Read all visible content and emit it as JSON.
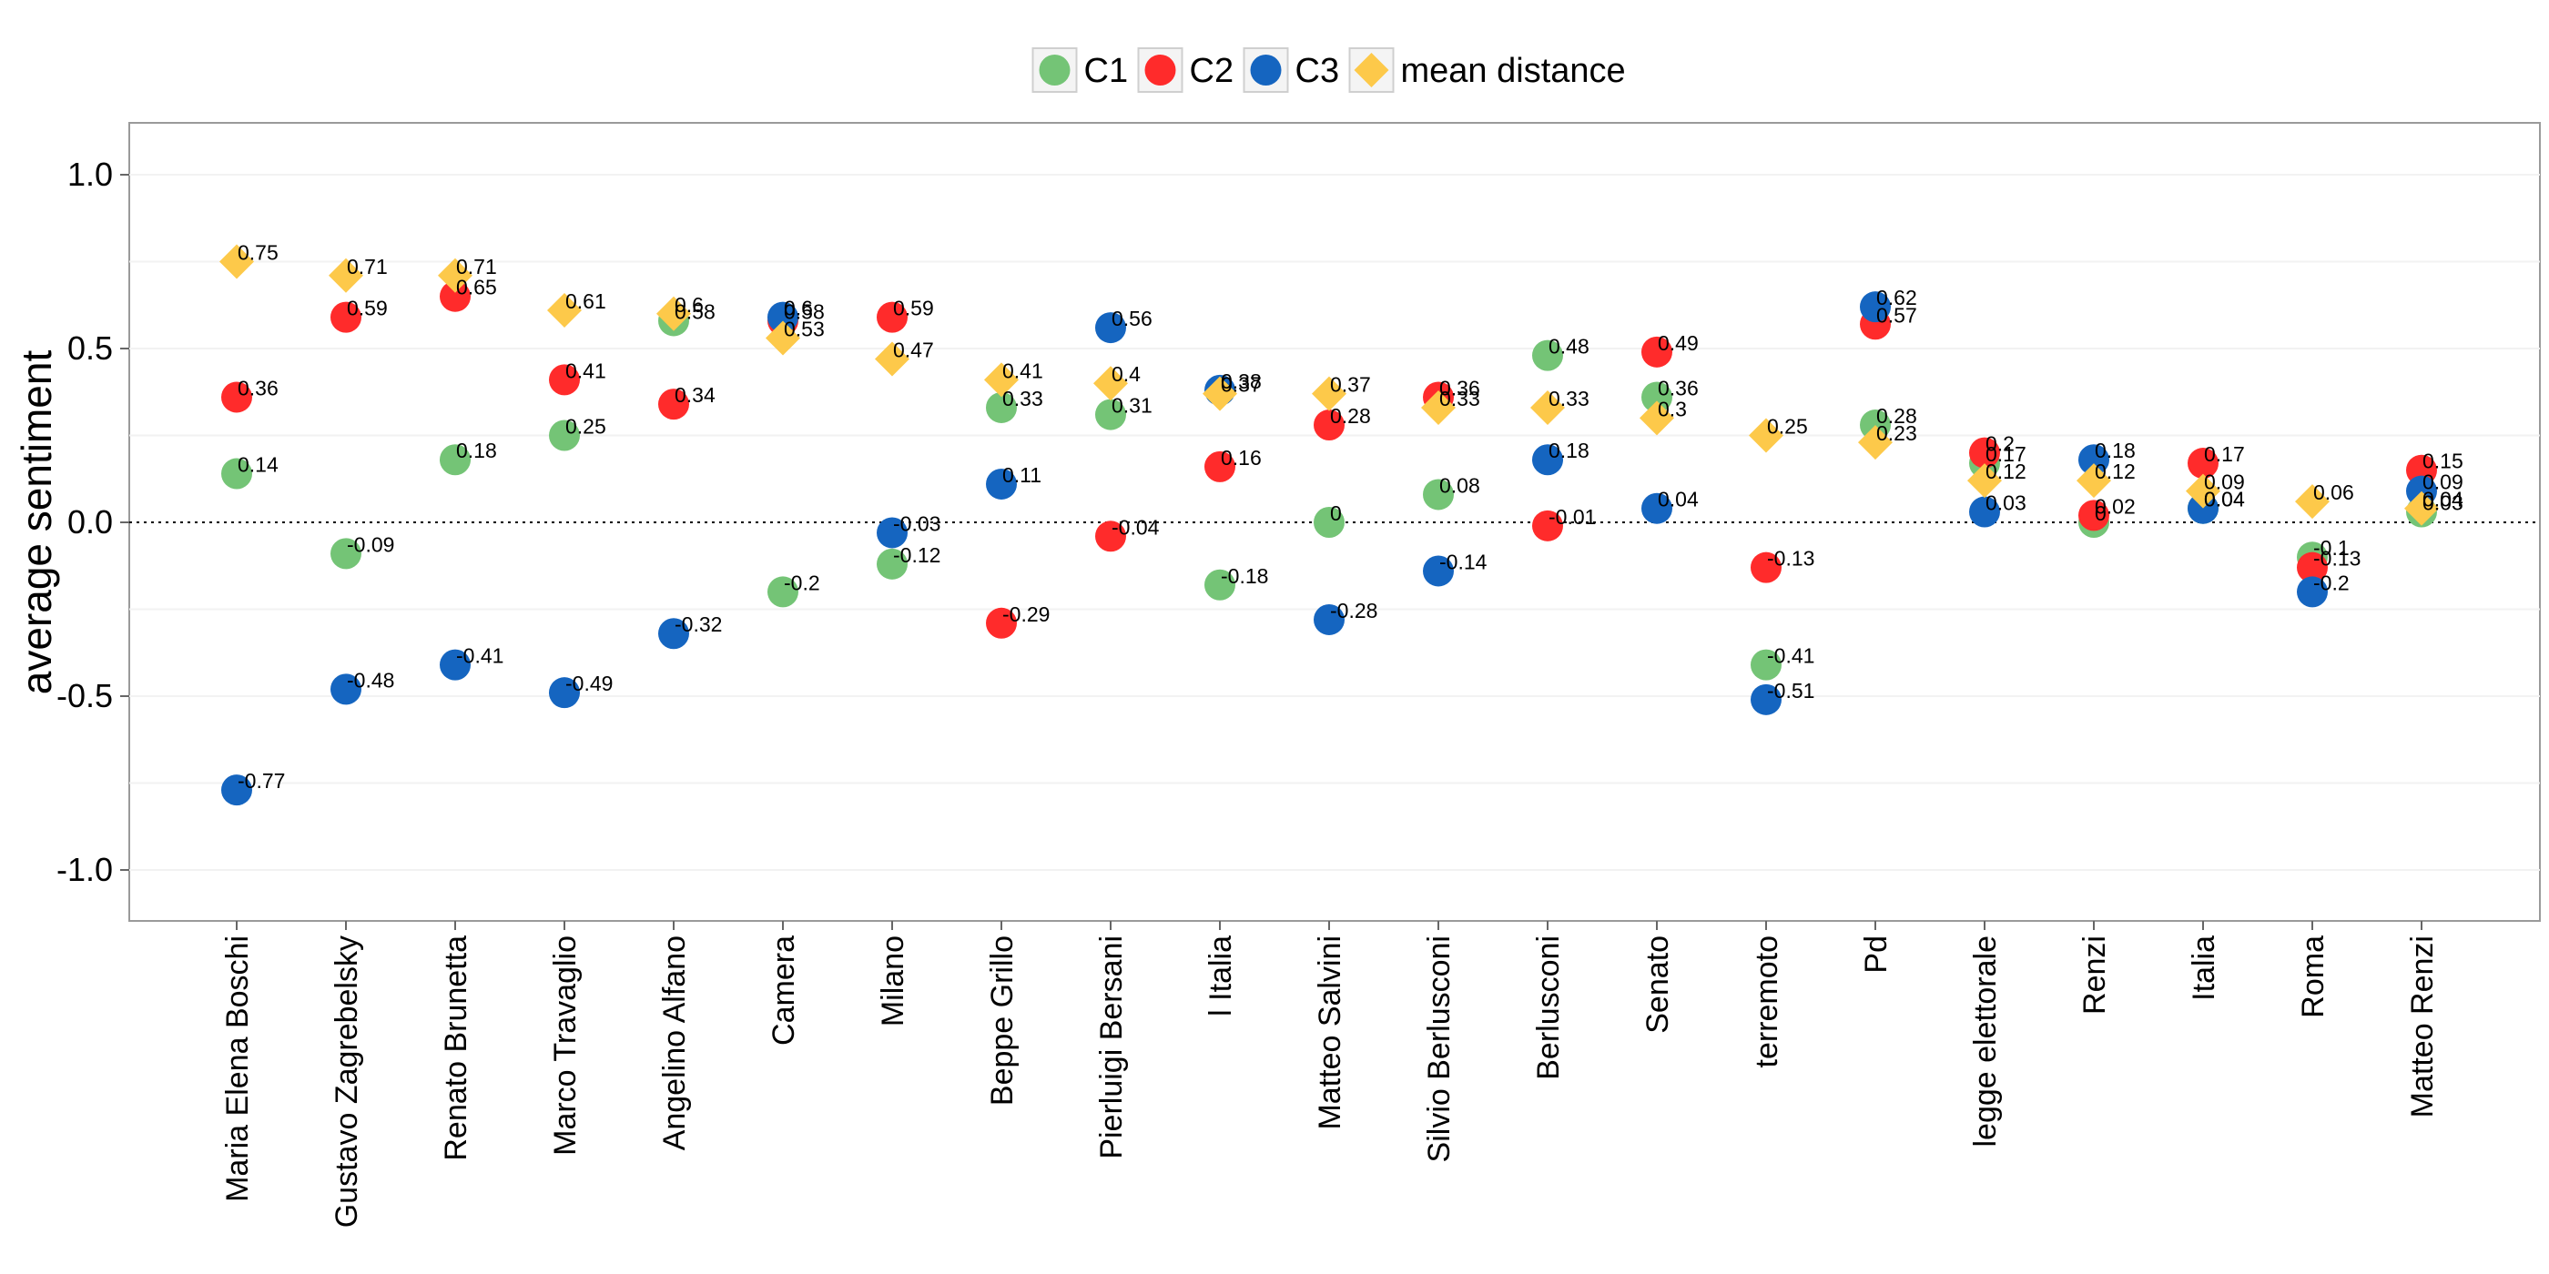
{
  "chart_data": {
    "type": "scatter",
    "title": "",
    "xlabel": "",
    "ylabel": "average sentiment",
    "ylim": [
      -1.15,
      1.15
    ],
    "yticks": [
      1.0,
      0.5,
      0.0,
      -0.5,
      -1.0
    ],
    "ytick_labels": [
      "1.0",
      "0.5",
      "0.0",
      "-0.5",
      "-1.0"
    ],
    "reference_line": 0,
    "legend_position": "top",
    "categories": [
      "Maria Elena Boschi",
      "Gustavo Zagrebelsky",
      "Renato Brunetta",
      "Marco Travaglio",
      "Angelino Alfano",
      "Camera",
      "Milano",
      "Beppe Grillo",
      "Pierluigi Bersani",
      "l Italia",
      "Matteo Salvini",
      "Silvio Berlusconi",
      "Berlusconi",
      "Senato",
      "terremoto",
      "Pd",
      "legge elettorale",
      "Renzi",
      "Italia",
      "Roma",
      "Matteo Renzi"
    ],
    "series": [
      {
        "name": "C1",
        "marker": "circle",
        "color": "#74c476",
        "values": [
          0.14,
          -0.09,
          0.18,
          0.25,
          0.58,
          -0.2,
          -0.12,
          0.33,
          0.31,
          -0.18,
          0,
          0.08,
          0.48,
          0.36,
          -0.41,
          0.28,
          0.17,
          0,
          0.04,
          -0.1,
          0.03
        ],
        "labels": [
          "0.14",
          "-0.09",
          "0.18",
          "0.25",
          "0.58",
          "-0.2",
          "-0.12",
          "0.33",
          "0.31",
          "-0.18",
          "0",
          "0.08",
          "0.48",
          "0.36",
          "-0.41",
          "0.28",
          "0.17",
          "0",
          "0.04",
          "-0.1",
          "0.03"
        ]
      },
      {
        "name": "C2",
        "marker": "circle",
        "color": "#ff2b2b",
        "values": [
          0.36,
          0.59,
          0.65,
          0.41,
          0.34,
          0.58,
          0.59,
          -0.29,
          -0.04,
          0.16,
          0.28,
          0.36,
          -0.01,
          0.49,
          -0.13,
          0.57,
          0.2,
          0.02,
          0.17,
          -0.13,
          0.15
        ],
        "labels": [
          "0.36",
          "0.59",
          "0.65",
          "0.41",
          "0.34",
          "0.58",
          "0.59",
          "-0.29",
          "-0.04",
          "0.16",
          "0.28",
          "0.36",
          "-0.01",
          "0.49",
          "-0.13",
          "0.57",
          "0.2",
          "0.02",
          "0.17",
          "-0.13",
          "0.15"
        ]
      },
      {
        "name": "C3",
        "marker": "circle",
        "color": "#1565c0",
        "values": [
          -0.77,
          -0.48,
          -0.41,
          -0.49,
          -0.32,
          0.59,
          -0.03,
          0.11,
          0.56,
          0.38,
          -0.28,
          -0.14,
          0.18,
          0.04,
          -0.51,
          0.62,
          0.03,
          0.18,
          0.04,
          -0.2,
          0.09
        ],
        "labels": [
          "-0.77",
          "-0.48",
          "-0.41",
          "-0.49",
          "-0.32",
          "0.6",
          "-0.03",
          "0.11",
          "0.56",
          "0.38",
          "-0.28",
          "-0.14",
          "0.18",
          "0.04",
          "-0.51",
          "0.62",
          "0.03",
          "0.18",
          "0.04",
          "-0.2",
          "0.09"
        ]
      },
      {
        "name": "mean distance",
        "marker": "diamond",
        "color": "#fdc94a",
        "values": [
          0.75,
          0.71,
          0.71,
          0.61,
          0.6,
          0.53,
          0.47,
          0.41,
          0.4,
          0.37,
          0.37,
          0.33,
          0.33,
          0.3,
          0.25,
          0.23,
          0.12,
          0.12,
          0.09,
          0.06,
          0.04
        ],
        "labels": [
          "0.75",
          "0.71",
          "0.71",
          "0.61",
          "0.6",
          "0.53",
          "0.47",
          "0.41",
          "0.4",
          "0.37",
          "0.37",
          "0.33",
          "0.33",
          "0.3",
          "0.25",
          "0.23",
          "0.12",
          "0.12",
          "0.09",
          "0.06",
          "0.04"
        ]
      }
    ]
  }
}
